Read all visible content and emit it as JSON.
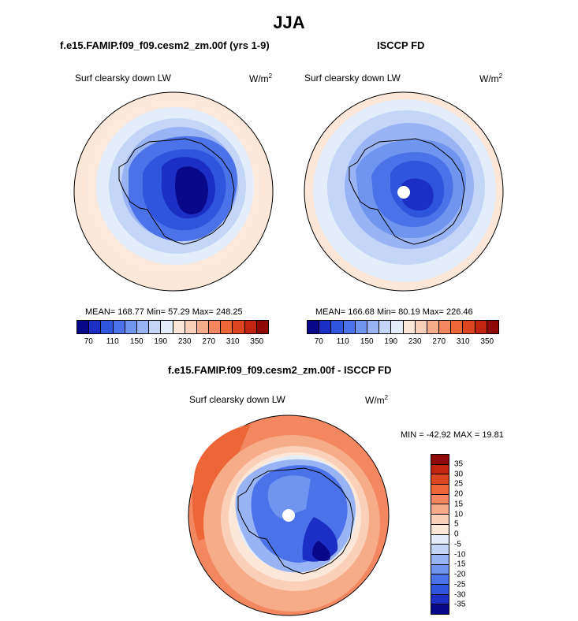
{
  "season": "JJA",
  "panels": [
    {
      "title": "f.e15.FAMIP.f09_f09.cesm2_zm.00f (yrs 1-9)",
      "variable": "Surf clearsky down LW",
      "units": "W/m",
      "units_sup": "2",
      "stats": "MEAN= 168.77  Min=  57.29  Max= 248.25"
    },
    {
      "title": "ISCCP FD",
      "variable": "Surf clearsky down LW",
      "units": "W/m",
      "units_sup": "2",
      "stats": "MEAN= 166.68  Min=  80.19  Max= 226.46"
    }
  ],
  "abs_colorbar": {
    "colors": [
      "#08088a",
      "#1c2fc4",
      "#2f55dd",
      "#4c72ea",
      "#7095ef",
      "#98b4f4",
      "#c3d6f8",
      "#e4eefb",
      "#fde7d8",
      "#fbd0b8",
      "#f6ab89",
      "#f28760",
      "#ec6637",
      "#db4520",
      "#bf2510",
      "#8e0a06"
    ],
    "tick_labels": [
      "70",
      "110",
      "150",
      "190",
      "230",
      "270",
      "310",
      "350"
    ]
  },
  "diff_panel": {
    "title": "f.e15.FAMIP.f09_f09.cesm2_zm.00f - ISCCP FD",
    "variable": "Surf clearsky down LW",
    "units": "W/m",
    "units_sup": "2",
    "stats": "MIN = -42.92 MAX =  19.81"
  },
  "diff_colorbar": {
    "colors": [
      "#8e0a06",
      "#bf2510",
      "#db4520",
      "#ec6637",
      "#f28760",
      "#f6ab89",
      "#fbd0b8",
      "#fde7d8",
      "#e4eefb",
      "#c3d6f8",
      "#98b4f4",
      "#7095ef",
      "#4c72ea",
      "#2f55dd",
      "#1c2fc4",
      "#08088a"
    ],
    "tick_labels": [
      "35",
      "30",
      "25",
      "20",
      "15",
      "10",
      "5",
      "0",
      "-5",
      "-10",
      "-15",
      "-20",
      "-25",
      "-30",
      "-35"
    ]
  },
  "colors": {
    "ocean_far": "#fde7d8",
    "land_core": "#08088a",
    "diff_warm": "#ec6637",
    "diff_cool": "#2f55dd",
    "missing": "#ffffff"
  }
}
